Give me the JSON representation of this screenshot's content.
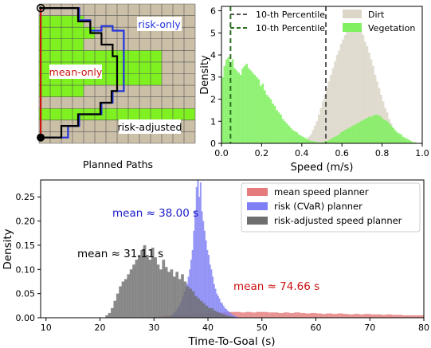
{
  "chart_data": [
    {
      "type": "grid-map",
      "title": "Planned Paths",
      "grid": {
        "cols": 14,
        "rows": 12
      },
      "colors": {
        "dirt": "#cbbfa8",
        "vegetation": "#7ff020",
        "grid_line": "#555555"
      },
      "vegetation_rows": [
        {
          "row_range": [
            1,
            8
          ],
          "col_range": [
            0,
            4
          ]
        },
        {
          "row_range": [
            2,
            3
          ],
          "col_range": [
            4,
            5
          ]
        },
        {
          "row_range": [
            4,
            7
          ],
          "col_range": [
            4,
            11
          ]
        },
        {
          "row_range": [
            9,
            10
          ],
          "col_range": [
            0,
            14
          ]
        }
      ],
      "paths": [
        {
          "name": "mean-only",
          "label": "mean-only",
          "color": "#cc1111",
          "points": [
            [
              0.15,
              11.5
            ],
            [
              0.15,
              0.35
            ]
          ]
        },
        {
          "name": "risk-only",
          "label": "risk-only",
          "color": "#2233dd",
          "points": [
            [
              0.15,
              11.5
            ],
            [
              2.6,
              11.5
            ],
            [
              2.6,
              10.5
            ],
            [
              3.6,
              10.5
            ],
            [
              3.6,
              9.5
            ],
            [
              5.6,
              9.5
            ],
            [
              5.6,
              8.5
            ],
            [
              6.6,
              8.5
            ],
            [
              6.6,
              7.5
            ],
            [
              7.6,
              7.5
            ],
            [
              7.6,
              2.3
            ],
            [
              6.6,
              2.3
            ],
            [
              6.6,
              1.9
            ],
            [
              5.6,
              1.9
            ],
            [
              5.6,
              2.3
            ],
            [
              4.6,
              2.3
            ],
            [
              4.6,
              1.4
            ],
            [
              3.6,
              1.4
            ],
            [
              3.6,
              0.35
            ],
            [
              0.15,
              0.35
            ]
          ]
        },
        {
          "name": "risk-adjusted",
          "label": "risk-adjusted",
          "color": "#000000",
          "points": [
            [
              0.15,
              11.5
            ],
            [
              2.0,
              11.5
            ],
            [
              2.0,
              10.5
            ],
            [
              3.5,
              10.5
            ],
            [
              3.5,
              9.5
            ],
            [
              5.5,
              9.5
            ],
            [
              5.5,
              8.5
            ],
            [
              6.5,
              8.5
            ],
            [
              6.5,
              7.5
            ],
            [
              7.0,
              7.5
            ],
            [
              7.0,
              4.5
            ],
            [
              6.6,
              4.5
            ],
            [
              6.6,
              3.5
            ],
            [
              5.6,
              3.5
            ],
            [
              5.6,
              2.5
            ],
            [
              4.6,
              2.5
            ],
            [
              4.6,
              1.5
            ],
            [
              3.5,
              1.5
            ],
            [
              3.5,
              0.35
            ],
            [
              0.15,
              0.35
            ]
          ]
        }
      ],
      "start_marker": "filled-circle",
      "goal_marker": "open-circle"
    },
    {
      "type": "histogram",
      "xlabel": "Speed (m/s)",
      "ylabel": "Density",
      "xlim": [
        0.0,
        1.0
      ],
      "ylim": [
        0,
        6.2
      ],
      "xticks": [
        0.0,
        0.2,
        0.4,
        0.6,
        0.8,
        1.0
      ],
      "yticks": [
        0,
        1,
        2,
        3,
        4,
        5,
        6
      ],
      "legend_position": "top",
      "vlines": [
        {
          "name": "10-th Percentile",
          "x": 0.52,
          "color": "#555555",
          "style": "dashed"
        },
        {
          "name": "10-th Percentile",
          "x": 0.045,
          "color": "#2a6e1f",
          "style": "dashed"
        }
      ],
      "series": [
        {
          "name": "Dirt",
          "color": "#dcd6c8",
          "bin_width": 0.01,
          "x_start": 0.4,
          "values": [
            0.1,
            0.1,
            0.2,
            0.3,
            0.4,
            0.6,
            0.8,
            1.0,
            1.3,
            1.6,
            1.9,
            2.2,
            2.5,
            2.8,
            3.1,
            3.4,
            3.7,
            4.0,
            4.2,
            4.5,
            4.7,
            4.9,
            5.1,
            5.2,
            5.3,
            5.4,
            5.35,
            5.3,
            5.2,
            5.1,
            4.9,
            4.6,
            4.4,
            4.1,
            3.8,
            3.5,
            3.1,
            2.8,
            2.5,
            2.2,
            1.9,
            1.6,
            1.4,
            1.1,
            0.9,
            0.7,
            0.5,
            0.4,
            0.3,
            0.2,
            0.15,
            0.1,
            0.05,
            0.05
          ]
        },
        {
          "name": "Vegetation",
          "color": "#80f060",
          "bin_width": 0.01,
          "x_start": 0.0,
          "values": [
            3.0,
            3.5,
            3.8,
            3.9,
            3.6,
            3.8,
            3.4,
            3.3,
            3.2,
            3.1,
            3.4,
            3.5,
            3.6,
            3.4,
            3.3,
            3.2,
            3.1,
            3.0,
            2.9,
            2.6,
            2.7,
            2.4,
            2.2,
            2.1,
            2.0,
            1.8,
            1.7,
            1.5,
            1.4,
            1.3,
            1.1,
            1.0,
            0.9,
            0.8,
            0.7,
            0.6,
            0.55,
            0.5,
            0.4,
            0.35,
            0.3,
            0.25,
            0.2,
            0.15,
            0.1,
            0.1,
            0.08,
            0.05,
            0.05,
            0.05,
            0.05,
            0.1,
            0.1,
            0.15,
            0.2,
            0.25,
            0.3,
            0.35,
            0.4,
            0.5,
            0.55,
            0.6,
            0.65,
            0.7,
            0.75,
            0.8,
            0.85,
            0.9,
            0.95,
            1.0,
            1.05,
            1.1,
            1.15,
            1.2,
            1.2,
            1.25,
            1.3,
            1.3,
            1.25,
            1.2,
            1.1,
            1.05,
            1.0,
            0.9,
            0.8,
            0.7,
            0.6,
            0.5,
            0.45,
            0.4,
            0.3,
            0.25,
            0.2,
            0.15,
            0.1,
            0.05,
            0.05,
            0.02,
            0.0,
            0.0
          ]
        }
      ]
    },
    {
      "type": "histogram",
      "xlabel": "Time-To-Goal (s)",
      "ylabel": "Density",
      "xlim": [
        9,
        80
      ],
      "ylim": [
        0,
        0.285
      ],
      "xticks": [
        10,
        20,
        30,
        40,
        50,
        60,
        70,
        80
      ],
      "yticks": [
        0.0,
        0.05,
        0.1,
        0.15,
        0.2,
        0.25
      ],
      "legend_position": "top-right",
      "annotations": [
        {
          "text": "mean ≈ 38.00 s",
          "color": "#1a1acc",
          "x": 38,
          "y": 0.225
        },
        {
          "text": "mean ≈ 31.11 s",
          "color": "#000000",
          "x": 21,
          "y": 0.135
        },
        {
          "text": "mean ≈ 74.66 s",
          "color": "#cc1111",
          "x": 55,
          "y": 0.065
        }
      ],
      "series": [
        {
          "name": "mean speed planner",
          "color": "#e57b7b",
          "bin_width": 1.0,
          "x_start": 30,
          "values": [
            0.002,
            0.003,
            0.004,
            0.005,
            0.006,
            0.006,
            0.007,
            0.008,
            0.009,
            0.009,
            0.01,
            0.011,
            0.011,
            0.012,
            0.012,
            0.012,
            0.011,
            0.012,
            0.011,
            0.012,
            0.012,
            0.011,
            0.011,
            0.01,
            0.011,
            0.01,
            0.011,
            0.01,
            0.009,
            0.01,
            0.009,
            0.008,
            0.009,
            0.008,
            0.009,
            0.008,
            0.007,
            0.008,
            0.007,
            0.008,
            0.007,
            0.007,
            0.006,
            0.007,
            0.006,
            0.006,
            0.005,
            0.005,
            0.005,
            0.005
          ]
        },
        {
          "name": "risk (CVaR) planner",
          "color": "#7f7ff5",
          "bin_width": 0.25,
          "x_start": 33,
          "values": [
            0.004,
            0.006,
            0.01,
            0.012,
            0.016,
            0.02,
            0.024,
            0.03,
            0.036,
            0.045,
            0.055,
            0.065,
            0.07,
            0.085,
            0.1,
            0.12,
            0.14,
            0.18,
            0.22,
            0.27,
            0.29,
            0.25,
            0.28,
            0.22,
            0.2,
            0.18,
            0.16,
            0.14,
            0.13,
            0.11,
            0.1,
            0.085,
            0.07,
            0.06,
            0.05,
            0.045,
            0.04,
            0.032,
            0.03,
            0.025,
            0.02,
            0.018,
            0.015,
            0.012,
            0.01,
            0.008,
            0.006,
            0.004,
            0.003,
            0.002
          ]
        },
        {
          "name": "risk-adjusted speed planner",
          "color": "#6e6e6e",
          "bin_width": 0.5,
          "x_start": 21,
          "values": [
            0.005,
            0.01,
            0.02,
            0.035,
            0.05,
            0.065,
            0.075,
            0.08,
            0.09,
            0.1,
            0.11,
            0.12,
            0.13,
            0.14,
            0.15,
            0.13,
            0.12,
            0.145,
            0.125,
            0.11,
            0.1,
            0.12,
            0.105,
            0.095,
            0.1,
            0.085,
            0.095,
            0.08,
            0.09,
            0.075,
            0.065,
            0.06,
            0.055,
            0.045,
            0.04,
            0.035,
            0.03,
            0.025,
            0.02,
            0.02,
            0.015,
            0.012,
            0.01,
            0.008,
            0.006,
            0.004,
            0.003,
            0.002
          ]
        }
      ]
    }
  ]
}
